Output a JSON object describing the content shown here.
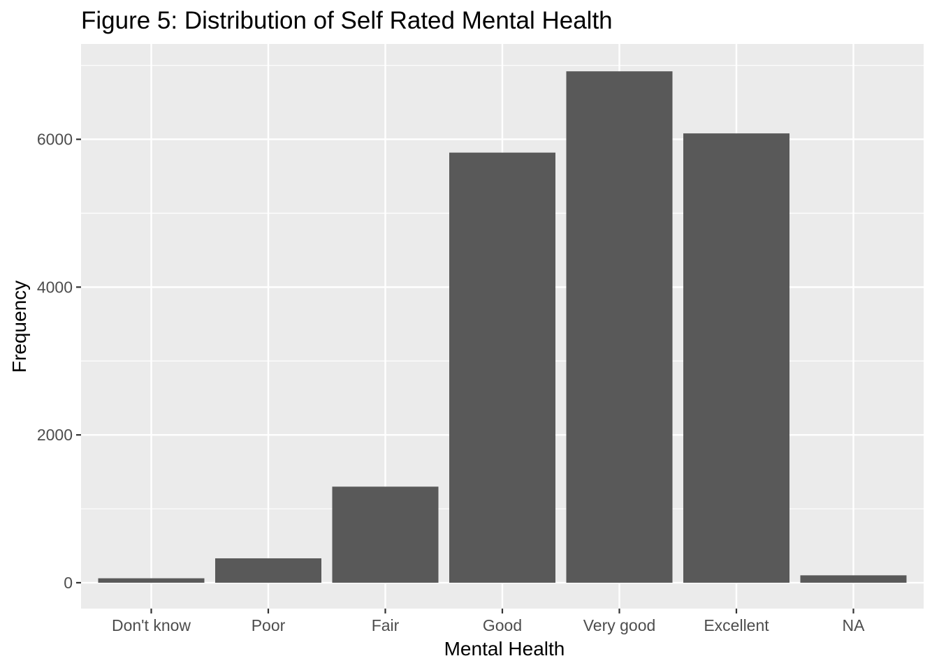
{
  "chart_data": {
    "type": "bar",
    "title": "Figure 5: Distribution of Self Rated Mental Health",
    "xlabel": "Mental Health",
    "ylabel": "Frequency",
    "categories": [
      "Don't know",
      "Poor",
      "Fair",
      "Good",
      "Very good",
      "Excellent",
      "NA"
    ],
    "values": [
      60,
      330,
      1300,
      5820,
      6920,
      6080,
      100
    ],
    "ylim": [
      -350,
      7290
    ],
    "yticks": [
      0,
      2000,
      4000,
      6000
    ],
    "ytick_labels": [
      "0",
      "2000",
      "4000",
      "6000"
    ],
    "grid": true,
    "colors": {
      "bar": "#595959",
      "panel": "#ebebeb",
      "grid_major": "#ffffff",
      "tick_text": "#4d4d4d",
      "tick_mark": "#333333"
    }
  }
}
